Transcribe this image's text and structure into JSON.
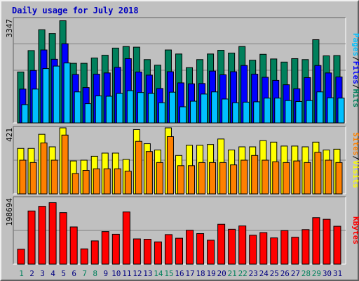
{
  "chart_data": [
    {
      "type": "bar",
      "panel": "hits",
      "title": "Daily usage for July 2018",
      "top_tick_label": "3347",
      "ylim": [
        0,
        3347
      ],
      "categories": [
        "1",
        "2",
        "3",
        "4",
        "5",
        "6",
        "7",
        "8",
        "9",
        "10",
        "11",
        "12",
        "13",
        "14",
        "15",
        "16",
        "17",
        "18",
        "19",
        "20",
        "21",
        "22",
        "23",
        "24",
        "25",
        "26",
        "27",
        "28",
        "29",
        "30",
        "31"
      ],
      "weekend_days": [
        "1",
        "7",
        "8",
        "14",
        "15",
        "21",
        "22",
        "28",
        "29"
      ],
      "series": [
        {
          "name": "Hits",
          "color": "#00805c",
          "values": [
            1640,
            2330,
            3000,
            2880,
            3290,
            1920,
            1920,
            2090,
            2180,
            2410,
            2460,
            2440,
            2040,
            1860,
            2350,
            2220,
            1780,
            2040,
            2220,
            2340,
            2250,
            2460,
            2020,
            2210,
            2060,
            1960,
            2070,
            2040,
            2680,
            2160,
            2170
          ]
        },
        {
          "name": "Files",
          "color": "#0000ff",
          "values": [
            1090,
            1690,
            2350,
            2050,
            2550,
            1560,
            1140,
            1570,
            1610,
            1790,
            2070,
            1640,
            1540,
            1110,
            1650,
            1290,
            1260,
            1270,
            1670,
            1550,
            1650,
            1850,
            1570,
            1470,
            1370,
            1230,
            1100,
            1460,
            1850,
            1610,
            1480
          ]
        },
        {
          "name": "Pages",
          "color": "#00c0ff",
          "values": [
            590,
            1090,
            1750,
            1830,
            1930,
            1000,
            620,
            870,
            860,
            950,
            1040,
            980,
            950,
            650,
            990,
            520,
            700,
            930,
            1000,
            770,
            650,
            670,
            680,
            800,
            800,
            720,
            690,
            720,
            1000,
            810,
            800
          ]
        }
      ],
      "axis_labels": [
        "Pages",
        "/",
        "Files",
        "/",
        "Hits"
      ]
    },
    {
      "type": "bar",
      "panel": "visits",
      "top_tick_label": "421",
      "ylim": [
        0,
        421
      ],
      "categories": [
        "1",
        "2",
        "3",
        "4",
        "5",
        "6",
        "7",
        "8",
        "9",
        "10",
        "11",
        "12",
        "13",
        "14",
        "15",
        "16",
        "17",
        "18",
        "19",
        "20",
        "21",
        "22",
        "23",
        "24",
        "25",
        "26",
        "27",
        "28",
        "29",
        "30",
        "31"
      ],
      "series": [
        {
          "name": "Visits",
          "color": "#ffff00",
          "values": [
            290,
            290,
            380,
            300,
            425,
            210,
            215,
            240,
            260,
            260,
            220,
            410,
            320,
            280,
            430,
            245,
            310,
            310,
            315,
            350,
            280,
            300,
            300,
            340,
            330,
            305,
            305,
            300,
            330,
            280,
            285
          ]
        },
        {
          "name": "Sites",
          "color": "#ff8000",
          "values": [
            215,
            200,
            325,
            215,
            375,
            130,
            150,
            160,
            160,
            160,
            145,
            335,
            270,
            200,
            365,
            180,
            180,
            200,
            200,
            200,
            185,
            215,
            245,
            215,
            205,
            200,
            210,
            200,
            265,
            215,
            200
          ]
        }
      ],
      "axis_labels": [
        "Sites",
        "/",
        "Visits"
      ]
    },
    {
      "type": "bar",
      "panel": "kbytes",
      "top_tick_label": "198694",
      "ylim": [
        0,
        198694
      ],
      "categories": [
        "1",
        "2",
        "3",
        "4",
        "5",
        "6",
        "7",
        "8",
        "9",
        "10",
        "11",
        "12",
        "13",
        "14",
        "15",
        "16",
        "17",
        "18",
        "19",
        "20",
        "21",
        "22",
        "23",
        "24",
        "25",
        "26",
        "27",
        "28",
        "29",
        "30",
        "31"
      ],
      "series": [
        {
          "name": "KBytes",
          "color": "#ff0000",
          "values": [
            45000,
            160000,
            174000,
            185000,
            155000,
            112000,
            46000,
            70000,
            98000,
            90000,
            157000,
            76000,
            75000,
            67000,
            89000,
            78000,
            102000,
            92000,
            72000,
            120000,
            105000,
            115000,
            87000,
            95000,
            79000,
            101000,
            81000,
            104000,
            140000,
            135000,
            114000
          ]
        }
      ],
      "axis_labels": [
        "KBytes"
      ]
    }
  ]
}
